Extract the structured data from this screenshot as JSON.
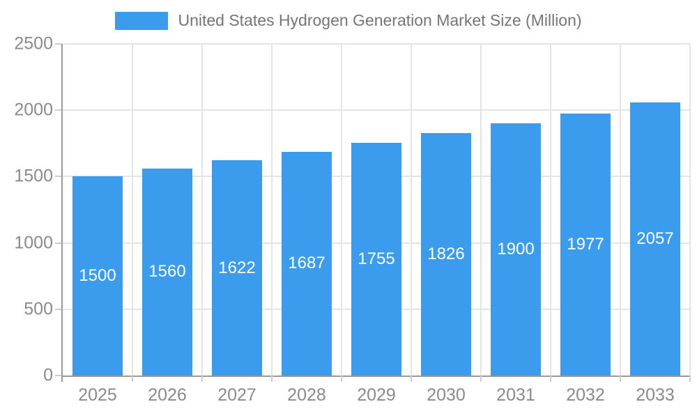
{
  "legend": {
    "label": "United States Hydrogen Generation Market Size (Million)"
  },
  "chart_data": {
    "type": "bar",
    "title": "United States Hydrogen Generation Market Size (Million)",
    "series_name": "United States Hydrogen Generation Market Size (Million)",
    "categories": [
      "2025",
      "2026",
      "2027",
      "2028",
      "2029",
      "2030",
      "2031",
      "2032",
      "2033"
    ],
    "values": [
      1500,
      1560,
      1622,
      1687,
      1755,
      1826,
      1900,
      1977,
      2057
    ],
    "xlabel": "",
    "ylabel": "",
    "ylim": [
      0,
      2500
    ],
    "ytick_step": 500,
    "ytick_labels": [
      "0",
      "500",
      "1000",
      "1500",
      "2000",
      "2500"
    ],
    "grid": true,
    "legend_position": "top-center",
    "bar_color": "#3b9cee",
    "bar_label_color": "#ffffff",
    "axis_label_color": "#8a8a8a",
    "legend_text_color": "#757575",
    "gridline_color": "#e4e4e4",
    "tick_color": "#cccccc",
    "axis_line_color": "#999999",
    "background_color": "#ffffff"
  }
}
